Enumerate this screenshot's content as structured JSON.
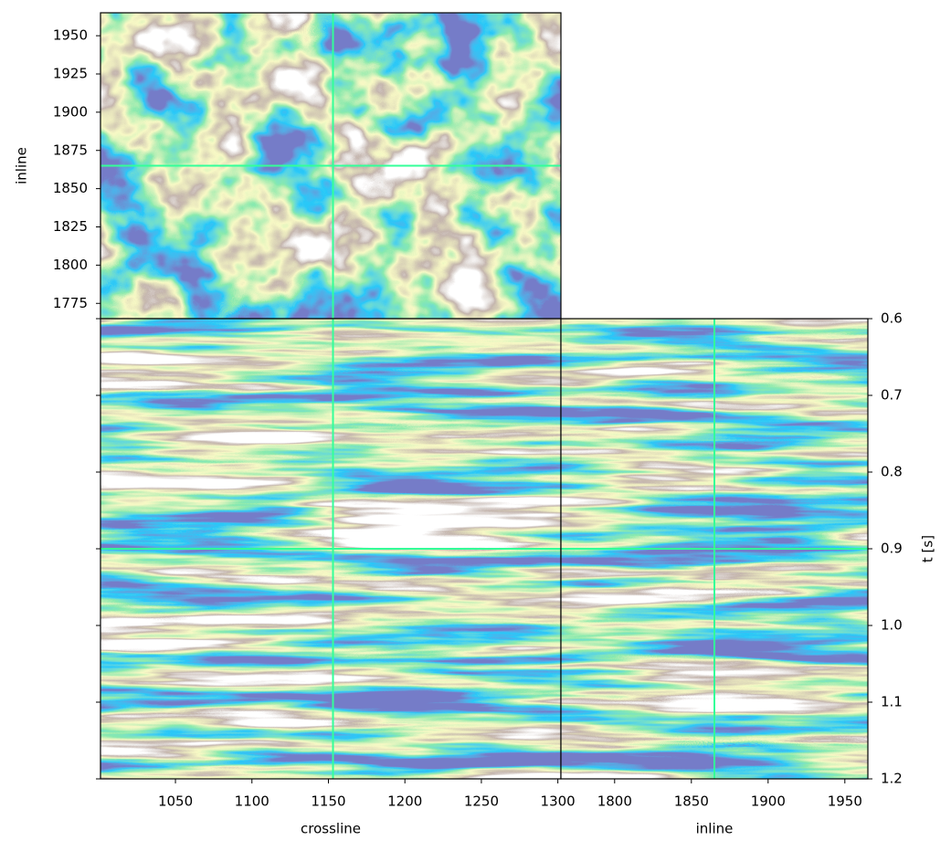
{
  "chart_data": [
    {
      "type": "heatmap",
      "colormap": "terrain",
      "ylabel": "inline",
      "xlim": [
        1001,
        1302
      ],
      "ylim": [
        1765,
        1965
      ],
      "xticks": [
        1050,
        1100,
        1150,
        1200,
        1250,
        1300
      ],
      "yticks": [
        1775,
        1800,
        1825,
        1850,
        1875,
        1900,
        1925,
        1950
      ],
      "show_xticklabels": false,
      "show_yticklabels": true,
      "yaxis_side": "left",
      "texture": "map",
      "crosshair": {
        "x": 1153,
        "y": 1865,
        "color": "#33ff99"
      }
    },
    {
      "type": "heatmap",
      "colormap": "terrain",
      "xlabel": "crossline",
      "xlim": [
        1001,
        1302
      ],
      "ylim": [
        1.2,
        0.6
      ],
      "xticks": [
        1050,
        1100,
        1150,
        1200,
        1250,
        1300
      ],
      "yticks": [
        0.6,
        0.7,
        0.8,
        0.9,
        1,
        1.1,
        1.2
      ],
      "show_xticklabels": true,
      "show_yticklabels": false,
      "yaxis_side": "left",
      "texture": "section",
      "crosshair": {
        "x": 1153,
        "y": 0.9,
        "color": "#33ff99"
      }
    },
    {
      "type": "heatmap",
      "colormap": "terrain",
      "xlabel": "inline",
      "ylabel": "t [s]",
      "xlim": [
        1765,
        1965
      ],
      "ylim": [
        1.2,
        0.6
      ],
      "xticks": [
        1800,
        1850,
        1900,
        1950
      ],
      "yticks": [
        0.6,
        0.7,
        0.8,
        0.9,
        {
          "value": 1,
          "label": "1.0"
        },
        1.1,
        1.2
      ],
      "show_xticklabels": true,
      "show_yticklabels": true,
      "yaxis_side": "right",
      "texture": "section",
      "crosshair": {
        "x": 1865,
        "y": 0.9,
        "color": "#33ff99"
      }
    }
  ]
}
